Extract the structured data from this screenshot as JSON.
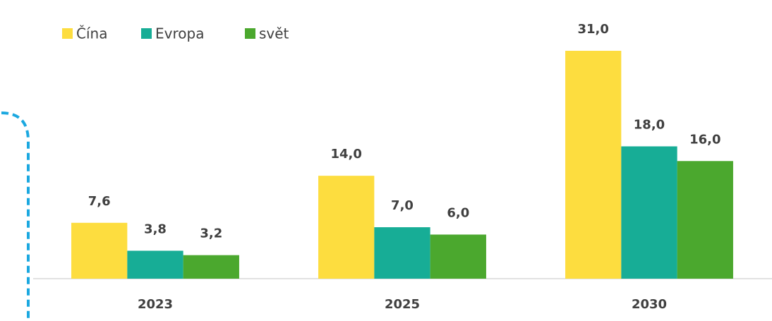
{
  "chart_data": {
    "type": "bar",
    "categories": [
      "2023",
      "2025",
      "2030"
    ],
    "series": [
      {
        "name": "Čína",
        "color": "#FDDD3F",
        "values": [
          7.6,
          14.0,
          31.0
        ],
        "value_labels": [
          "7,6",
          "14,0",
          "31,0"
        ]
      },
      {
        "name": "Evropa",
        "color": "#17AD96",
        "values": [
          3.8,
          7.0,
          18.0
        ],
        "value_labels": [
          "3,8",
          "7,0",
          "18,0"
        ]
      },
      {
        "name": "svět",
        "color": "#4BA82E",
        "values": [
          3.2,
          6.0,
          16.0
        ],
        "value_labels": [
          "3,2",
          "6,0",
          "16,0"
        ]
      }
    ]
  }
}
